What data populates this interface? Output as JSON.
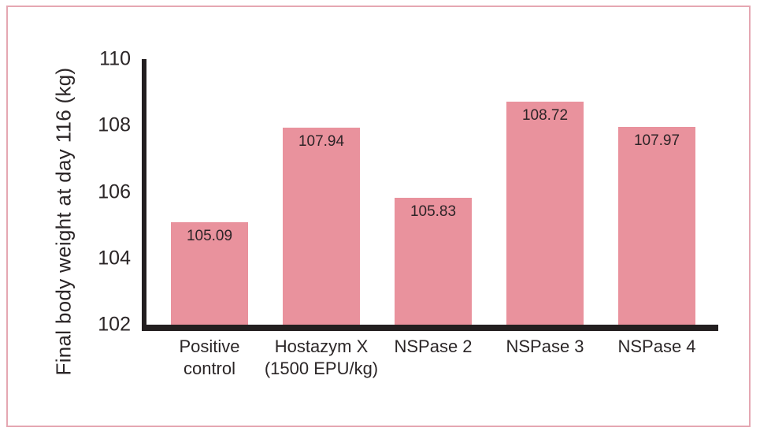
{
  "frame": {
    "border_color": "#e5a7b2",
    "background_color": "#ffffff"
  },
  "chart_data": {
    "type": "bar",
    "title": "",
    "xlabel": "",
    "ylabel": "Final body weight at day 116 (kg)",
    "categories": [
      "Positive control",
      "Hostazym X (1500 EPU/kg)",
      "NSPase 2",
      "NSPase 3",
      "NSPase 4"
    ],
    "category_lines": [
      "Positive\ncontrol",
      "Hostazym X\n(1500 EPU/kg)",
      "NSPase 2",
      "NSPase 3",
      "NSPase 4"
    ],
    "values": [
      105.09,
      107.94,
      105.83,
      108.72,
      107.97
    ],
    "value_labels": [
      "105.09",
      "107.94",
      "105.83",
      "108.72",
      "107.97"
    ],
    "ylim": [
      102,
      110
    ],
    "yticks": [
      110,
      108,
      106,
      104,
      102
    ],
    "grid": false,
    "legend": null,
    "bar_color": "#e9929d",
    "axis_color": "#231f20",
    "text_color": "#2b2627"
  }
}
